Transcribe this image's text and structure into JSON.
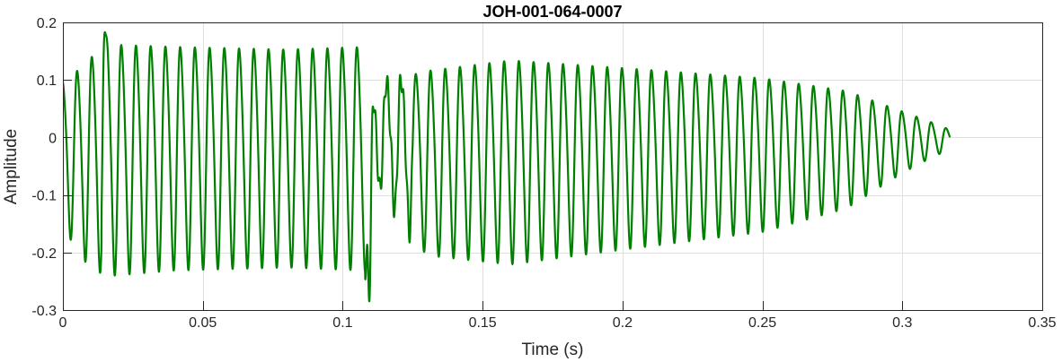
{
  "chart_data": {
    "type": "line",
    "title": "JOH-001-064-0007",
    "xlabel": "Time (s)",
    "ylabel": "Amplitude",
    "xlim": [
      0,
      0.35
    ],
    "ylim": [
      -0.3,
      0.2
    ],
    "xticks": [
      0,
      0.05,
      0.1,
      0.15,
      0.2,
      0.25,
      0.3,
      0.35
    ],
    "xtick_labels": [
      "0",
      "0.05",
      "0.1",
      "0.15",
      "0.2",
      "0.25",
      "0.3",
      "0.35"
    ],
    "yticks": [
      -0.3,
      -0.2,
      -0.1,
      0,
      0.1,
      0.2
    ],
    "ytick_labels": [
      "-0.3",
      "-0.2",
      "-0.1",
      "0",
      "0.1",
      "0.2"
    ],
    "grid": true,
    "series": [
      {
        "color": "#008000",
        "x_end": 0.317,
        "envelope_time": [
          0,
          0.005,
          0.015,
          0.04,
          0.08,
          0.108,
          0.112,
          0.13,
          0.16,
          0.2,
          0.25,
          0.28,
          0.3,
          0.31,
          0.317
        ],
        "envelope_max": [
          0.11,
          0.13,
          0.18,
          0.175,
          0.17,
          0.175,
          0.1,
          0.13,
          0.15,
          0.135,
          0.115,
          0.09,
          0.05,
          0.03,
          0.015
        ],
        "envelope_min": [
          -0.14,
          -0.2,
          -0.235,
          -0.225,
          -0.22,
          -0.225,
          -0.08,
          -0.2,
          -0.215,
          -0.19,
          -0.16,
          -0.12,
          -0.06,
          -0.035,
          -0.02
        ],
        "dominant_frequency_hz": 190,
        "extreme_points": [
          {
            "x": 0.1095,
            "y": -0.285
          },
          {
            "x": 0.015,
            "y": 0.183
          }
        ]
      }
    ]
  }
}
